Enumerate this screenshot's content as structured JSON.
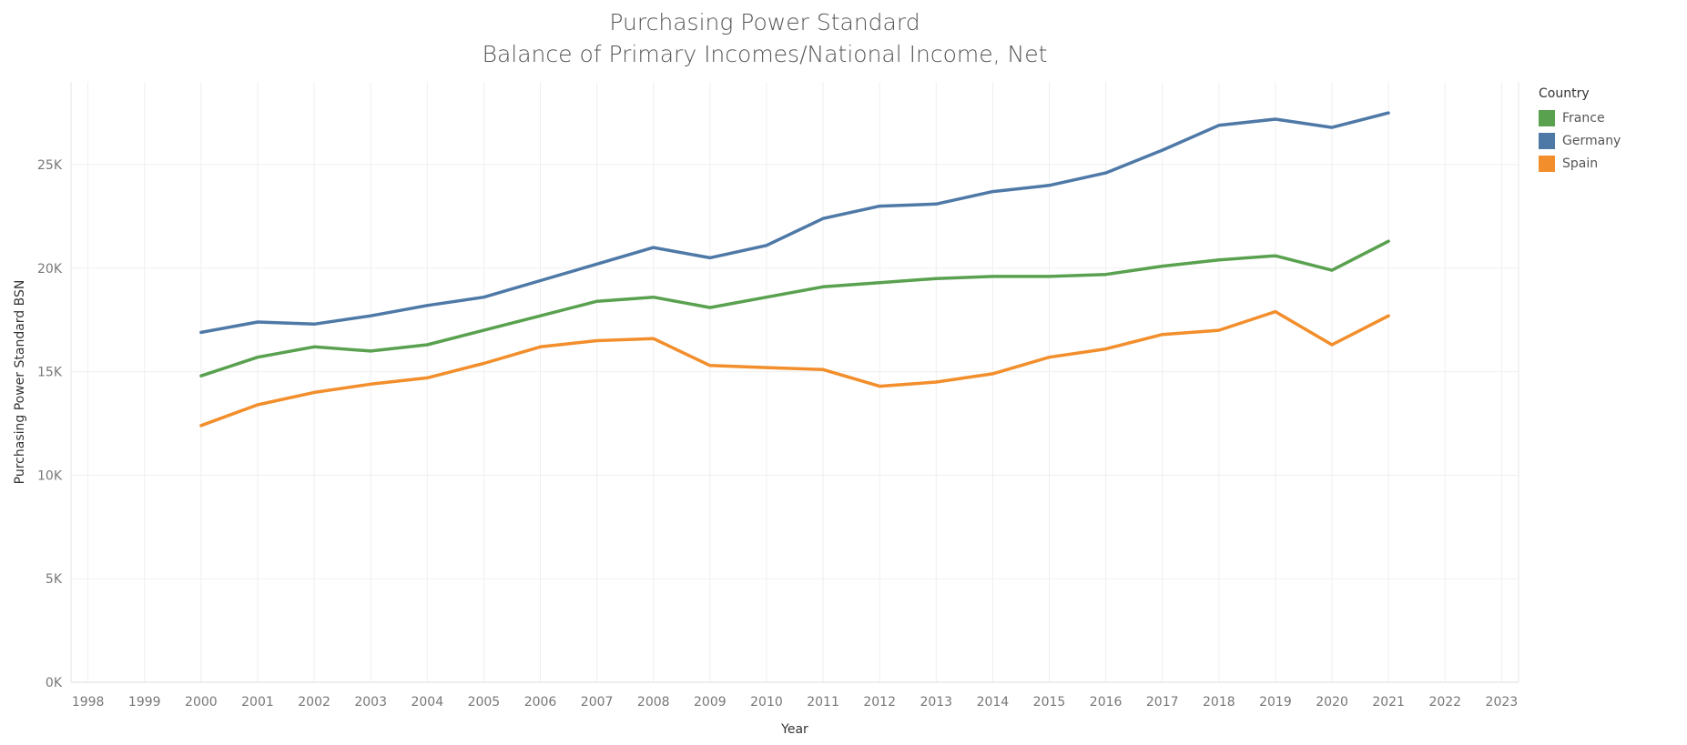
{
  "chart_data": {
    "type": "line",
    "title": "Purchasing Power Standard",
    "subtitle": "Balance of Primary Incomes/National Income, Net",
    "xlabel": "Year",
    "ylabel": "Purchasing Power Standard BSN",
    "x_ticks": [
      "1998",
      "1999",
      "2000",
      "2001",
      "2002",
      "2003",
      "2004",
      "2005",
      "2006",
      "2007",
      "2008",
      "2009",
      "2010",
      "2011",
      "2012",
      "2013",
      "2014",
      "2015",
      "2016",
      "2017",
      "2018",
      "2019",
      "2020",
      "2021",
      "2022",
      "2023"
    ],
    "y_ticks": [
      "0K",
      "5K",
      "10K",
      "15K",
      "20K",
      "25K"
    ],
    "xlim": [
      1997.7,
      2023.3
    ],
    "ylim": [
      0,
      29000
    ],
    "grid": true,
    "legend_title": "Country",
    "legend_position": "top-right",
    "x": [
      2000,
      2001,
      2002,
      2003,
      2004,
      2005,
      2006,
      2007,
      2008,
      2009,
      2010,
      2011,
      2012,
      2013,
      2014,
      2015,
      2016,
      2017,
      2018,
      2019,
      2020,
      2021
    ],
    "series": [
      {
        "name": "France",
        "color": "#59a14f",
        "values": [
          14800,
          15700,
          16200,
          16000,
          16300,
          17000,
          17700,
          18400,
          18600,
          18100,
          18600,
          19100,
          19300,
          19500,
          19600,
          19600,
          19700,
          20100,
          20400,
          20600,
          19900,
          21300
        ]
      },
      {
        "name": "Germany",
        "color": "#4e79a7",
        "values": [
          16900,
          17400,
          17300,
          17700,
          18200,
          18600,
          19400,
          20200,
          21000,
          20500,
          21100,
          22400,
          23000,
          23100,
          23700,
          24000,
          24600,
          25700,
          26900,
          27200,
          26800,
          27500
        ]
      },
      {
        "name": "Spain",
        "color": "#f28e2b",
        "values": [
          12400,
          13400,
          14000,
          14400,
          14700,
          15400,
          16200,
          16500,
          16600,
          15300,
          15200,
          15100,
          14300,
          14500,
          14900,
          15700,
          16100,
          16800,
          17000,
          17900,
          16300,
          17700
        ]
      }
    ]
  }
}
